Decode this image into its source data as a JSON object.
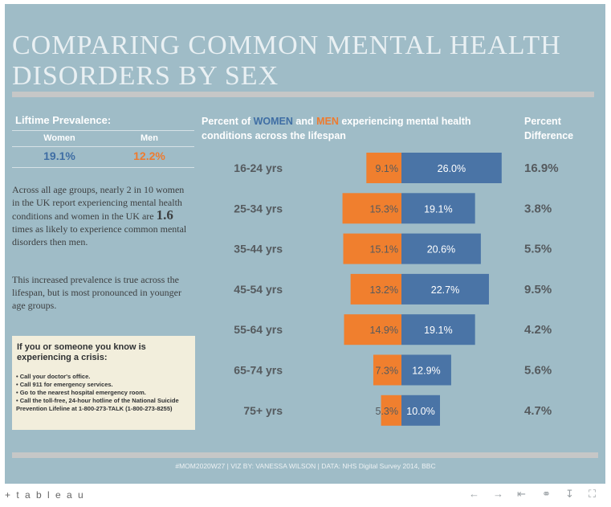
{
  "title": "COMPARING COMMON MENTAL HEALTH DISORDERS BY SEX",
  "prevalence": {
    "heading": "Liftime Prevalence:",
    "women_label": "Women",
    "men_label": "Men",
    "women_value": "19.1%",
    "men_value": "12.2%"
  },
  "description": {
    "p1_a": "Across all age groups, nearly 2 in 10 women in the UK report experiencing mental health conditions and women in the UK are",
    "p1_big": "1.6",
    "p1_b": "times as likely to experience common mental disorders then men.",
    "p2": "This increased prevalence is true across the lifespan, but is most pronounced in younger age groups."
  },
  "crisis": {
    "heading": "If you or someone you know is experiencing a crisis:",
    "items": [
      "• Call your doctor's office.",
      "• Call 911 for emergency services.",
      "• Go to the nearest hospital emergency room.",
      "• Call the toll-free, 24-hour hotline of the National Suicide Prevention Lifeline at 1-800-273-TALK (1-800-273-8255)"
    ]
  },
  "chart_header": {
    "prefix": "Percent of ",
    "women": "WOMEN",
    "middle": " and ",
    "men": "MEN",
    "suffix": " experiencing mental health conditions across the lifespan"
  },
  "pd_header": "Percent Difference",
  "colors": {
    "women": "#4a74a6",
    "men": "#f07f2e",
    "label": "#555a5e",
    "bar_text": "#ffffff",
    "men_text": "#555a5e"
  },
  "chart_data": {
    "type": "bar",
    "orientation": "horizontal-diverging",
    "categories": [
      "16-24 yrs",
      "25-34 yrs",
      "35-44 yrs",
      "45-54 yrs",
      "55-64 yrs",
      "65-74 yrs",
      "75+ yrs"
    ],
    "series": [
      {
        "name": "MEN",
        "values": [
          9.1,
          15.3,
          15.1,
          13.2,
          14.9,
          7.3,
          5.3
        ]
      },
      {
        "name": "WOMEN",
        "values": [
          26.0,
          19.1,
          20.6,
          22.7,
          19.1,
          12.9,
          10.0
        ]
      }
    ],
    "percent_difference": [
      16.9,
      3.8,
      5.5,
      9.5,
      4.2,
      5.6,
      4.7
    ]
  },
  "footer": "#MOM2020W27 | VIZ BY: VANESSA WILSON | DATA: NHS Digital Survey 2014, BBC",
  "toolbar": {
    "logo": "+ t a b l e a u",
    "icons": [
      "undo-icon",
      "redo-icon",
      "revert-icon",
      "share-icon",
      "download-icon",
      "fullscreen-icon"
    ]
  }
}
